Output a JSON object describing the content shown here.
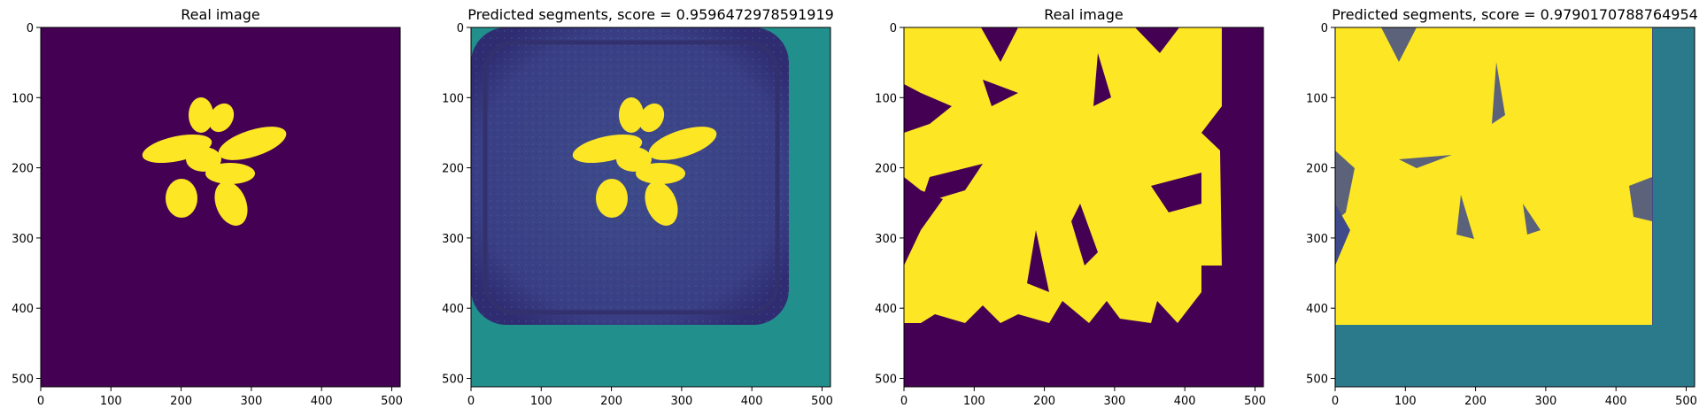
{
  "chart_data": [
    {
      "type": "image",
      "title": "Real image",
      "image": "binary mask of a small rosette plant, yellow on dark purple",
      "x_ticks": [
        0,
        100,
        200,
        300,
        400,
        500
      ],
      "y_ticks": [
        0,
        100,
        200,
        300,
        400,
        500
      ],
      "xlim": [
        0,
        512
      ],
      "ylim": [
        512,
        0
      ]
    },
    {
      "type": "image",
      "title": "Predicted segments, score = 0.9596472978591919",
      "image": "predicted segmentation of small rosette plant in a pot, teal border at right and bottom",
      "x_ticks": [
        0,
        100,
        200,
        300,
        400,
        500
      ],
      "y_ticks": [
        0,
        100,
        200,
        300,
        400,
        500
      ],
      "xlim": [
        0,
        512
      ],
      "ylim": [
        512,
        0
      ]
    },
    {
      "type": "image",
      "title": "Real image",
      "image": "binary mask of a large plant filling most of the frame, padded region at right and bottom",
      "x_ticks": [
        0,
        100,
        200,
        300,
        400,
        500
      ],
      "y_ticks": [
        0,
        100,
        200,
        300,
        400,
        500
      ],
      "xlim": [
        0,
        512
      ],
      "ylim": [
        512,
        0
      ]
    },
    {
      "type": "image",
      "title": "Predicted segments, score = 0.9790170788764954",
      "image": "predicted segmentation of large plant, teal border at right and bottom",
      "x_ticks": [
        0,
        100,
        200,
        300,
        400,
        500
      ],
      "y_ticks": [
        0,
        100,
        200,
        300,
        400,
        500
      ],
      "xlim": [
        0,
        512
      ],
      "ylim": [
        512,
        0
      ]
    }
  ],
  "colors": {
    "background_purple": "#440154",
    "mask_yellow": "#fde725",
    "pad_teal": "#21908d",
    "pad_teal_dark": "#2b7a8c",
    "pot_blue": "#3e4a89"
  }
}
